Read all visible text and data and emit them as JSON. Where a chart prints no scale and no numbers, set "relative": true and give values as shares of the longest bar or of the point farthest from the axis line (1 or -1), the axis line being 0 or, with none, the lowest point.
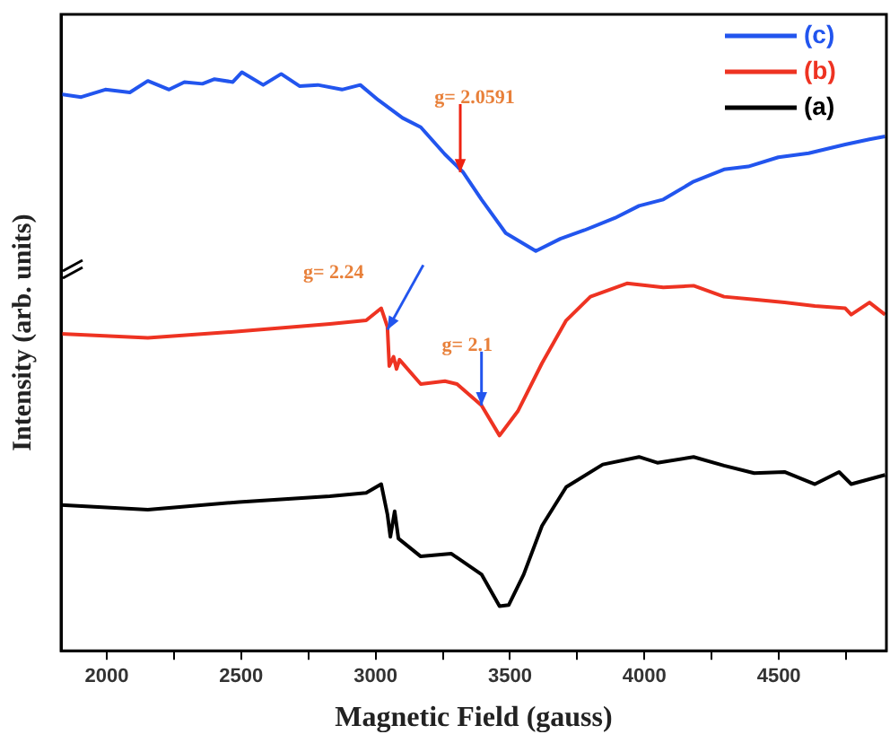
{
  "chart_data": {
    "type": "line",
    "xlabel": "Magnetic Field (gauss)",
    "ylabel": "Intensity (arb. units)",
    "relative": true,
    "xlim": [
      1830,
      4900
    ],
    "xticks": [
      2000,
      {
        "value": 2250,
        "label": null
      },
      2500,
      {
        "value": 2750,
        "label": null
      },
      3000,
      {
        "value": 3250,
        "label": null
      },
      3500,
      {
        "value": 3750,
        "label": null
      },
      4000,
      {
        "value": 4250,
        "label": null
      },
      4500,
      {
        "value": 4750,
        "label": null
      }
    ],
    "grid": false,
    "legend": "top right",
    "marker": "none",
    "line_style": "solid",
    "series": [
      {
        "name": "(c)",
        "color": "#2255ee",
        "x": [
          1830,
          1905,
          1995,
          2086,
          2153,
          2232,
          2289,
          2356,
          2401,
          2469,
          2503,
          2582,
          2649,
          2717,
          2785,
          2875,
          2943,
          3010,
          3100,
          3168,
          3258,
          3326,
          3394,
          3484,
          3596,
          3687,
          3777,
          3890,
          3980,
          4070,
          4183,
          4296,
          4386,
          4498,
          4611,
          4747,
          4837,
          4895
        ],
        "values": [
          0.962,
          0.957,
          0.97,
          0.965,
          0.985,
          0.97,
          0.983,
          0.98,
          0.988,
          0.983,
          1.0,
          0.978,
          0.997,
          0.976,
          0.978,
          0.97,
          0.978,
          0.952,
          0.921,
          0.905,
          0.858,
          0.827,
          0.78,
          0.722,
          0.691,
          0.712,
          0.727,
          0.748,
          0.769,
          0.78,
          0.811,
          0.832,
          0.837,
          0.853,
          0.86,
          0.875,
          0.884,
          0.889
        ]
      },
      {
        "name": "(b)",
        "color": "#ee3322",
        "x": [
          1830,
          2153,
          2492,
          2830,
          2965,
          3021,
          3044,
          3051,
          3067,
          3078,
          3089,
          3168,
          3258,
          3303,
          3394,
          3461,
          3529,
          3619,
          3709,
          3799,
          3935,
          4070,
          4183,
          4296,
          4408,
          4521,
          4634,
          4747,
          4769,
          4837,
          4895
        ],
        "values": [
          0.548,
          0.541,
          0.552,
          0.565,
          0.571,
          0.592,
          0.56,
          0.492,
          0.508,
          0.487,
          0.503,
          0.461,
          0.466,
          0.461,
          0.424,
          0.372,
          0.414,
          0.497,
          0.571,
          0.612,
          0.635,
          0.628,
          0.631,
          0.612,
          0.607,
          0.602,
          0.596,
          0.592,
          0.581,
          0.602,
          0.581
        ]
      },
      {
        "name": "(a)",
        "color": "#000000",
        "x": [
          1830,
          2153,
          2492,
          2830,
          2965,
          3021,
          3044,
          3055,
          3071,
          3085,
          3168,
          3281,
          3394,
          3461,
          3495,
          3551,
          3619,
          3709,
          3845,
          3980,
          4048,
          4183,
          4296,
          4408,
          4521,
          4634,
          4724,
          4769,
          4895
        ],
        "values": [
          0.252,
          0.244,
          0.257,
          0.267,
          0.273,
          0.288,
          0.236,
          0.197,
          0.241,
          0.194,
          0.163,
          0.168,
          0.132,
          0.077,
          0.079,
          0.132,
          0.216,
          0.283,
          0.322,
          0.335,
          0.325,
          0.335,
          0.32,
          0.307,
          0.309,
          0.288,
          0.309,
          0.288,
          0.304
        ]
      }
    ],
    "annotations": [
      {
        "text": "g= 2.0591",
        "x": 3315,
        "y": 0.827
      },
      {
        "text": "g= 2.24",
        "x": 3044,
        "y": 0.555
      },
      {
        "text": "g= 2.1",
        "x": 3394,
        "y": 0.424
      }
    ]
  }
}
